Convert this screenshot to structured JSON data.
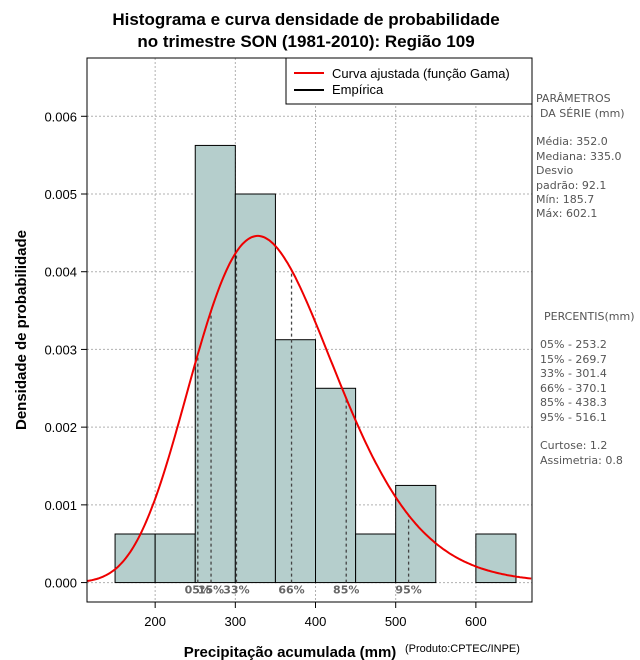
{
  "colors": {
    "bar_fill": "#b5cecc",
    "curve": "#ee0000",
    "grid": "#b0b0b0",
    "percentile_line": "#444444",
    "side_text": "#555555"
  },
  "credit": "(Produto:CPTEC/INPE)",
  "side_panel": {
    "params_title_1": "PARÂMETROS",
    "params_title_2": "DA SÉRIE (mm)",
    "media": "Média:  352.0",
    "mediana": "Mediana:  335.0",
    "desvio_1": "Desvio",
    "desvio_2": "padrão:  92.1",
    "min": "Mín:  185.7",
    "max": "Máx:  602.1",
    "percentis_title": "PERCENTIS(mm)",
    "p05": "05% -  253.2",
    "p15": "15% -  269.7",
    "p33": "33% -  301.4",
    "p66": "66% -  370.1",
    "p85": "85% -  438.3",
    "p95": "95% -  516.1",
    "curtose": "Curtose:  1.2",
    "assimetria": "Assimetria:  0.8"
  },
  "chart_data": {
    "type": "histogram",
    "title_line1": "Histograma e curva densidade de probabilidade",
    "title_line2": "no trimestre SON (1981-2010): Região 109",
    "xlabel": "Precipitação acumulada (mm)",
    "ylabel": "Densidade de probabilidade",
    "xlim": [
      115,
      670
    ],
    "ylim": [
      -0.00025,
      0.00675
    ],
    "x_ticks": [
      200,
      300,
      400,
      500,
      600
    ],
    "y_ticks": [
      0.0,
      0.001,
      0.002,
      0.003,
      0.004,
      0.005,
      0.006
    ],
    "y_tick_labels": [
      "0.000",
      "0.001",
      "0.002",
      "0.003",
      "0.004",
      "0.005",
      "0.006"
    ],
    "bins": [
      {
        "x0": 150,
        "x1": 200,
        "density": 0.000625
      },
      {
        "x0": 200,
        "x1": 250,
        "density": 0.000625
      },
      {
        "x0": 250,
        "x1": 300,
        "density": 0.005625
      },
      {
        "x0": 300,
        "x1": 350,
        "density": 0.005
      },
      {
        "x0": 350,
        "x1": 400,
        "density": 0.003125
      },
      {
        "x0": 400,
        "x1": 450,
        "density": 0.0025
      },
      {
        "x0": 450,
        "x1": 500,
        "density": 0.000625
      },
      {
        "x0": 500,
        "x1": 550,
        "density": 0.00125
      },
      {
        "x0": 550,
        "x1": 600,
        "density": 0.0
      },
      {
        "x0": 600,
        "x1": 650,
        "density": 0.000625
      }
    ],
    "gamma_fit": {
      "mean": 352.0,
      "sd": 92.1
    },
    "percentiles": [
      {
        "label": "05%",
        "value": 253.2
      },
      {
        "label": "15%",
        "value": 269.7
      },
      {
        "label": "33%",
        "value": 301.4
      },
      {
        "label": "66%",
        "value": 370.1
      },
      {
        "label": "85%",
        "value": 438.3
      },
      {
        "label": "95%",
        "value": 516.1
      }
    ],
    "legend": [
      {
        "label": "Curva ajustada (função Gama)",
        "color": "#ee0000"
      },
      {
        "label": "Empírica",
        "color": "#000000"
      }
    ],
    "grid": true,
    "legend_position": "top-right"
  }
}
